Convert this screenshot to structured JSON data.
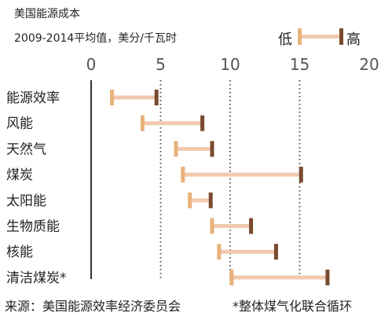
{
  "title": "美国能源成本",
  "subtitle": "2009-2014平均值，美分/千瓦时",
  "legend": {
    "low_label": "低",
    "high_label": "高"
  },
  "footer": {
    "source": "来源：美国能源效率经济委员会",
    "note": "*整体煤气化联合循环"
  },
  "colors": {
    "low_marker": "#e8b27a",
    "high_marker": "#7a4a2e",
    "range_bar": "#f2c9ad",
    "axis": "#333333",
    "grid": "#555555"
  },
  "chart_data": {
    "type": "range",
    "title": "美国能源成本",
    "subtitle": "2009-2014平均值，美分/千瓦时",
    "xlim": [
      0,
      20
    ],
    "xticks": [
      0,
      5,
      10,
      15,
      20
    ],
    "grid": "dotted vertical at 5, 10, 15",
    "legend_placement": "top-right",
    "categories": [
      "能源效率",
      "风能",
      "天然气",
      "煤炭",
      "太阳能",
      "生物质能",
      "核能",
      "清洁煤炭*"
    ],
    "low": [
      1.5,
      3.7,
      6.1,
      6.6,
      7.1,
      8.7,
      9.2,
      10.1
    ],
    "high": [
      4.7,
      8.0,
      8.7,
      15.1,
      8.6,
      11.5,
      13.3,
      17.0
    ]
  }
}
